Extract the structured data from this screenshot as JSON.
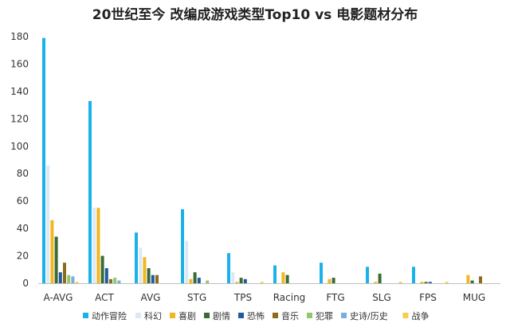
{
  "chart_data": {
    "type": "bar",
    "title": "20世纪至今 改编成游戏类型Top10 vs 电影题材分布",
    "xlabel": "",
    "ylabel": "",
    "ylim": [
      0,
      180
    ],
    "yticks": [
      0,
      20,
      40,
      60,
      80,
      100,
      120,
      140,
      160,
      180
    ],
    "grid": false,
    "legend_position": "bottom",
    "categories": [
      "A-AVG",
      "ACT",
      "AVG",
      "STG",
      "TPS",
      "Racing",
      "FTG",
      "SLG",
      "FPS",
      "MUG"
    ],
    "series": [
      {
        "name": "动作冒险",
        "color": "#1ab2e8",
        "values": [
          179,
          133,
          37,
          54,
          22,
          13,
          15,
          12,
          12,
          0
        ]
      },
      {
        "name": "科幻",
        "color": "#dce9f5",
        "values": [
          86,
          55,
          26,
          31,
          8,
          0,
          0,
          0,
          0,
          0
        ]
      },
      {
        "name": "喜剧",
        "color": "#f2b61f",
        "values": [
          46,
          55,
          19,
          3,
          1,
          8,
          3,
          1,
          1,
          6
        ]
      },
      {
        "name": "剧情",
        "color": "#3a6b35",
        "values": [
          34,
          20,
          11,
          8,
          4,
          6,
          4,
          7,
          1,
          2
        ]
      },
      {
        "name": "恐怖",
        "color": "#215a9e",
        "values": [
          8,
          11,
          6,
          4,
          3,
          0,
          0,
          0,
          1,
          0
        ]
      },
      {
        "name": "音乐",
        "color": "#8c6b1b",
        "values": [
          15,
          3,
          6,
          0,
          0,
          0,
          0,
          0,
          0,
          5
        ]
      },
      {
        "name": "犯罪",
        "color": "#8fc96e",
        "values": [
          6,
          4,
          0,
          2,
          0,
          0,
          0,
          0,
          0,
          0
        ]
      },
      {
        "name": "史诗/历史",
        "color": "#7aaee0",
        "values": [
          5,
          2,
          0,
          0,
          0,
          0,
          0,
          0,
          0,
          0
        ]
      },
      {
        "name": "战争",
        "color": "#f7cd4a",
        "values": [
          1,
          0,
          0,
          0,
          1,
          0,
          0,
          1,
          1,
          0
        ]
      }
    ]
  }
}
